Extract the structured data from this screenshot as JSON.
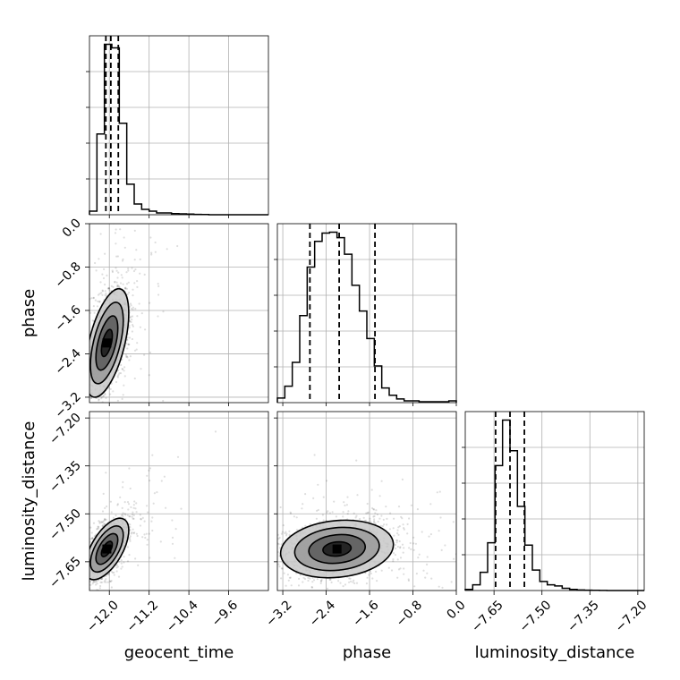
{
  "chart_data": {
    "type": "corner",
    "parameters": [
      {
        "name": "geocent_time",
        "label": "geocent_time",
        "range": [
          -12.4,
          -8.8
        ],
        "ticks": [
          -12.0,
          -11.2,
          -10.4,
          -9.6
        ],
        "tick_labels": [
          "−12.0",
          "−11.2",
          "−10.4",
          "−9.6"
        ],
        "quantiles": [
          -12.07,
          -11.97,
          -11.82
        ],
        "hist_bins": [
          -12.4,
          -12.25,
          -12.1,
          -11.95,
          -11.8,
          -11.65,
          -11.5,
          -11.35,
          -11.2,
          -11.05,
          -10.9,
          -10.75,
          -10.6,
          -10.45,
          -10.3,
          -10.15,
          -10.0,
          -9.85,
          -9.7,
          -9.55,
          -9.4,
          -9.25,
          -9.1,
          -8.95,
          -8.8
        ],
        "hist_counts": [
          2,
          45,
          95,
          93,
          51,
          17,
          6,
          3,
          2,
          1,
          1,
          0.6,
          0.5,
          0.4,
          0.2,
          0.1,
          0,
          0,
          0,
          0,
          0,
          0,
          0,
          0
        ]
      },
      {
        "name": "phase",
        "label": "phase",
        "range": [
          -3.3,
          0.0
        ],
        "ticks": [
          -3.2,
          -2.4,
          -1.6,
          -0.8,
          0.0
        ],
        "tick_labels": [
          "−3.2",
          "−2.4",
          "−1.6",
          "−0.8",
          "0.0"
        ],
        "quantiles": [
          -2.7,
          -2.16,
          -1.5
        ],
        "hist_bins": [
          -3.3,
          -3.1625,
          -3.025,
          -2.8875,
          -2.75,
          -2.6125,
          -2.475,
          -2.3375,
          -2.2,
          -2.0625,
          -1.925,
          -1.7875,
          -1.65,
          -1.5125,
          -1.375,
          -1.2375,
          -1.1,
          -0.9625,
          -0.825,
          -0.6875,
          -0.55,
          -0.4125,
          -0.275,
          -0.1375,
          0.0
        ],
        "hist_counts": [
          5,
          18,
          44,
          95,
          148,
          176,
          185,
          186,
          180,
          162,
          128,
          100,
          70,
          40,
          16,
          8,
          4,
          2,
          2,
          1,
          1,
          1,
          1,
          2
        ]
      },
      {
        "name": "luminosity_distance",
        "label": "luminosity_distance",
        "range": [
          -7.74,
          -7.18
        ],
        "ticks": [
          -7.65,
          -7.5,
          -7.35,
          -7.2
        ],
        "tick_labels": [
          "−7.65",
          "−7.50",
          "−7.35",
          "−7.20"
        ],
        "quantiles": [
          -7.645,
          -7.6,
          -7.555
        ],
        "hist_bins": [
          -7.74,
          -7.7167,
          -7.6933,
          -7.67,
          -7.6467,
          -7.6233,
          -7.6,
          -7.5767,
          -7.5533,
          -7.53,
          -7.5067,
          -7.4833,
          -7.46,
          -7.4367,
          -7.4133,
          -7.39,
          -7.3667,
          -7.3433,
          -7.32,
          -7.2967,
          -7.2733,
          -7.25,
          -7.2267,
          -7.2033,
          -7.18
        ],
        "hist_counts": [
          1,
          5,
          16,
          42,
          110,
          150,
          123,
          74,
          40,
          18,
          8,
          5,
          4,
          2,
          1,
          0.5,
          0.3,
          0.2,
          0.1,
          0,
          0,
          0,
          0,
          0
        ]
      }
    ],
    "density_2d": [
      {
        "x": "geocent_time",
        "y": "phase",
        "center": [
          -12.05,
          -2.2
        ],
        "sigma": [
          0.22,
          0.5
        ],
        "correlation": 0.55,
        "contour_levels_sigma": [
          0.5,
          1.0,
          1.5,
          2.0
        ]
      },
      {
        "x": "geocent_time",
        "y": "luminosity_distance",
        "center": [
          -12.05,
          -7.61
        ],
        "sigma": [
          0.22,
          0.048
        ],
        "correlation": 0.6,
        "contour_levels_sigma": [
          0.5,
          1.0,
          1.5,
          2.0
        ]
      },
      {
        "x": "phase",
        "y": "luminosity_distance",
        "center": [
          -2.2,
          -7.61
        ],
        "sigma": [
          0.52,
          0.045
        ],
        "correlation": 0.15,
        "contour_levels_sigma": [
          0.5,
          1.0,
          1.5,
          2.0
        ]
      }
    ],
    "grid": true
  }
}
